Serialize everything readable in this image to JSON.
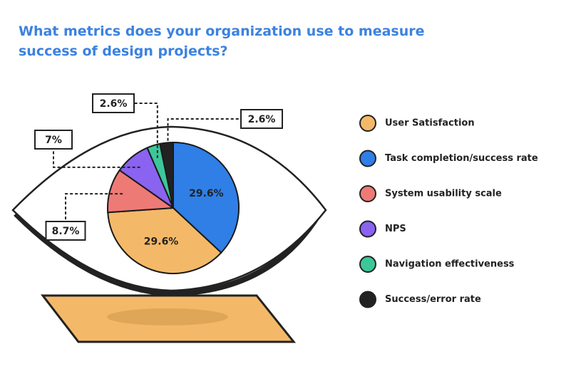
{
  "chart_data": {
    "type": "pie",
    "title": "What metrics does your organization use to measure success of design projects?",
    "categories": [
      "User Satisfaction",
      "Task completion/success rate",
      "System usability scale",
      "NPS",
      "Navigation effectiveness",
      "Success/error rate"
    ],
    "values": [
      29.6,
      29.6,
      8.7,
      7,
      2.6,
      2.6
    ],
    "value_labels": [
      "29.6%",
      "29.6%",
      "8.7%",
      "7%",
      "2.6%",
      "2.6%"
    ],
    "colors": [
      "#f4b968",
      "#2f7fe6",
      "#ee7a76",
      "#8a63f0",
      "#3cc79a",
      "#222222"
    ]
  }
}
